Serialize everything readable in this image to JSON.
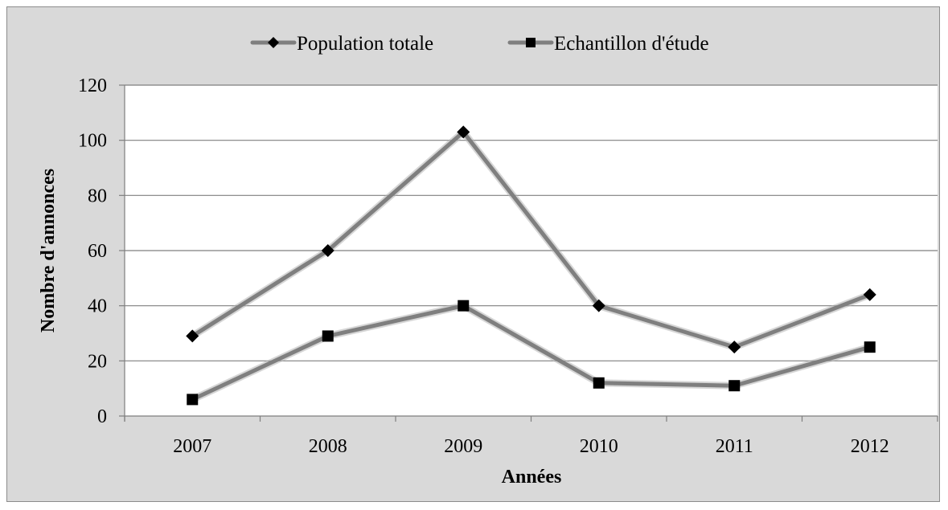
{
  "chart_data": {
    "type": "line",
    "title": "",
    "xlabel": "Années",
    "ylabel": "Nombre d'annonces",
    "categories": [
      "2007",
      "2008",
      "2009",
      "2010",
      "2011",
      "2012"
    ],
    "ylim": [
      0,
      120
    ],
    "yticks": [
      0,
      20,
      40,
      60,
      80,
      100,
      120
    ],
    "grid": "horizontal",
    "legend_position": "top",
    "series": [
      {
        "name": "Population totale",
        "marker": "diamond",
        "color": "#7f7f7f",
        "values": [
          29,
          60,
          103,
          40,
          25,
          44
        ]
      },
      {
        "name": "Echantillon d'étude",
        "marker": "square",
        "color": "#7f7f7f",
        "values": [
          6,
          29,
          40,
          12,
          11,
          25
        ]
      }
    ]
  },
  "colors": {
    "frame_background": "#d9d9d9",
    "plot_background": "#ffffff",
    "gridline": "#7f7f7f",
    "marker": "#000000"
  }
}
